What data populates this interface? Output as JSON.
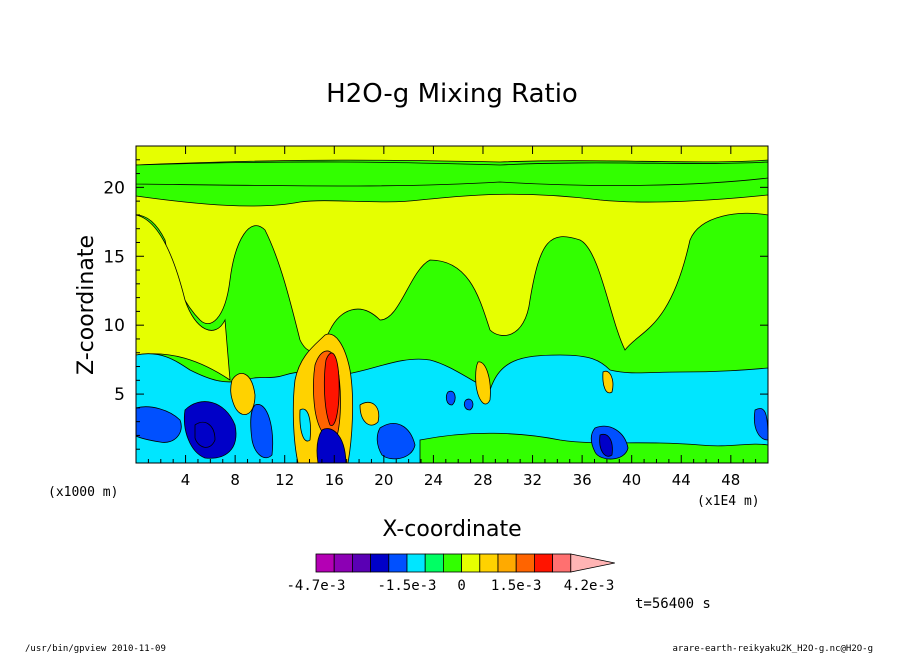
{
  "chart_data": {
    "type": "heatmap",
    "title": "H2O-g Mixing Ratio",
    "xlabel": "X-coordinate",
    "ylabel": "Z-coordinate",
    "x_unit_left": "(x1000 m)",
    "x_unit_right": "(x1E4 m)",
    "xlim": [
      0,
      51
    ],
    "ylim": [
      0,
      23
    ],
    "x_ticks": [
      4,
      8,
      12,
      16,
      20,
      24,
      28,
      32,
      36,
      40,
      44,
      48
    ],
    "x_tick_labels": [
      "4",
      "8",
      "12",
      "16",
      "20",
      "24",
      "28",
      "32",
      "36",
      "40",
      "44",
      "48"
    ],
    "y_ticks": [
      5,
      10,
      15,
      20
    ],
    "y_tick_labels": [
      "5",
      "10",
      "15",
      "20"
    ],
    "colorbar": {
      "levels": [
        -0.0047,
        -0.0041,
        -0.0035,
        -0.0027,
        -0.0021,
        -0.0015,
        -0.001,
        -0.0005,
        0,
        0.0005,
        0.001,
        0.0015,
        0.0022,
        0.0029,
        0.0035,
        0.0042
      ],
      "colors": [
        "#b400b4",
        "#8c00b4",
        "#5a00b4",
        "#0000c8",
        "#0050ff",
        "#00e6ff",
        "#00ff64",
        "#32ff00",
        "#e6ff00",
        "#ffd200",
        "#ffaa00",
        "#ff6400",
        "#ff1400",
        "#ff7070",
        "#ffb4b4"
      ],
      "tick_labels": [
        "-4.7e-3",
        "-1.5e-3",
        "0",
        "1.5e-3",
        "4.2e-3"
      ],
      "tick_values": [
        -0.0047,
        -0.0015,
        0,
        0.0015,
        0.0042
      ]
    },
    "background_bands": [
      {
        "z0": 0,
        "z1": 1.5,
        "level": "green"
      },
      {
        "z0": 1.5,
        "z1": 7.5,
        "level": "cyan"
      },
      {
        "z0": 7.5,
        "z1": 20,
        "level": "yellow"
      },
      {
        "z0": 20,
        "z1": 22,
        "level": "green"
      },
      {
        "z0": 22,
        "z1": 23,
        "level": "yellow"
      }
    ],
    "time_label": "t=56400 s"
  },
  "footer": {
    "left": "/usr/bin/gpview   2010-11-09",
    "right": "arare-earth-reikyaku2K_H2O-g.nc@H2O-g"
  }
}
